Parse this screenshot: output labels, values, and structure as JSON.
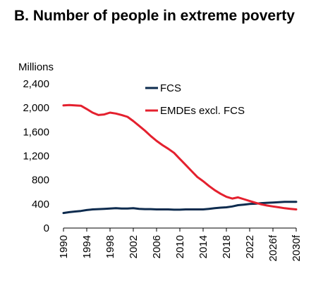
{
  "chart_data": {
    "type": "line",
    "title": "B. Number of people in extreme poverty",
    "ylabel": "Millions",
    "xlabel": "",
    "ylim": [
      0,
      2400
    ],
    "yticks": [
      0,
      400,
      800,
      1200,
      1600,
      2000,
      2400
    ],
    "ytick_labels": [
      "0",
      "400",
      "800",
      "1,200",
      "1,600",
      "2,000",
      "2,400"
    ],
    "xlim": [
      1990,
      2030
    ],
    "xticks": [
      1990,
      1994,
      1998,
      2002,
      2006,
      2010,
      2014,
      2018,
      2022,
      2026,
      2030
    ],
    "xtick_labels": [
      "1990",
      "1994",
      "1998",
      "2002",
      "2006",
      "2010",
      "2014",
      "2018",
      "2022",
      "2026f",
      "2030f"
    ],
    "grid": false,
    "legend": "top-center",
    "series": [
      {
        "name": "FCS",
        "color": "#0d2b4e",
        "x": [
          1990,
          1991,
          1992,
          1993,
          1994,
          1995,
          1996,
          1997,
          1998,
          1999,
          2000,
          2001,
          2002,
          2003,
          2004,
          2005,
          2006,
          2007,
          2008,
          2009,
          2010,
          2011,
          2012,
          2013,
          2014,
          2015,
          2016,
          2017,
          2018,
          2019,
          2020,
          2021,
          2022,
          2023,
          2024,
          2025,
          2026,
          2027,
          2028,
          2029,
          2030
        ],
        "values": [
          250,
          265,
          275,
          285,
          300,
          310,
          315,
          320,
          325,
          330,
          325,
          325,
          330,
          320,
          315,
          315,
          310,
          310,
          310,
          305,
          305,
          310,
          310,
          310,
          310,
          320,
          330,
          340,
          345,
          360,
          380,
          390,
          400,
          405,
          415,
          420,
          425,
          430,
          435,
          435,
          435
        ]
      },
      {
        "name": "EMDEs excl. FCS",
        "color": "#e4202e",
        "x": [
          1990,
          1991,
          1992,
          1993,
          1994,
          1995,
          1996,
          1997,
          1998,
          1999,
          2000,
          2001,
          2002,
          2003,
          2004,
          2005,
          2006,
          2007,
          2008,
          2009,
          2010,
          2011,
          2012,
          2013,
          2014,
          2015,
          2016,
          2017,
          2018,
          2019,
          2020,
          2021,
          2022,
          2023,
          2024,
          2025,
          2026,
          2027,
          2028,
          2029,
          2030
        ],
        "values": [
          2040,
          2045,
          2040,
          2035,
          1980,
          1920,
          1880,
          1890,
          1920,
          1905,
          1880,
          1850,
          1780,
          1700,
          1620,
          1530,
          1450,
          1380,
          1320,
          1250,
          1150,
          1050,
          950,
          850,
          780,
          700,
          630,
          570,
          520,
          490,
          510,
          480,
          450,
          420,
          395,
          375,
          360,
          345,
          330,
          320,
          310
        ]
      }
    ]
  }
}
